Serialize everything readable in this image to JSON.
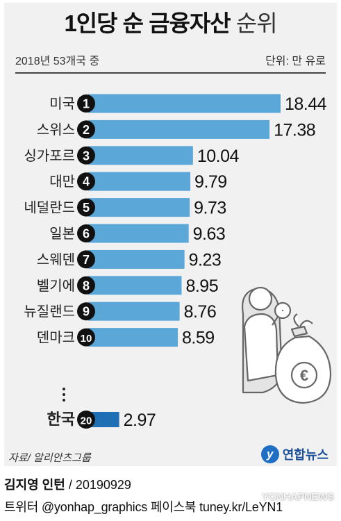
{
  "title_bold": "1인당 순 금융자산",
  "title_light": "순위",
  "subtitle": "2018년 53개국 중",
  "unit": "단위: 만 유로",
  "chart_data": {
    "type": "bar",
    "orientation": "horizontal",
    "title": "1인당 순 금융자산 순위",
    "unit": "만 유로",
    "categories": [
      "미국",
      "스위스",
      "싱가포르",
      "대만",
      "네덜란드",
      "일본",
      "스웨덴",
      "벨기에",
      "뉴질랜드",
      "덴마크",
      "한국"
    ],
    "ranks": [
      "1",
      "2",
      "3",
      "4",
      "5",
      "6",
      "7",
      "8",
      "9",
      "10",
      "20"
    ],
    "values": [
      18.44,
      17.38,
      10.04,
      9.79,
      9.73,
      9.63,
      9.23,
      8.95,
      8.76,
      8.59,
      2.97
    ],
    "value_labels": [
      "18.44",
      "17.38",
      "10.04",
      "9.79",
      "9.73",
      "9.63",
      "9.23",
      "8.95",
      "8.76",
      "8.59",
      "2.97"
    ],
    "highlight": "한국",
    "colors": {
      "bar": "#5aa7d8",
      "highlight_bar": "#1e6fb3",
      "rank_circle": "#111111",
      "panel": "#f1f1f1"
    },
    "xlim": [
      0,
      18.44
    ],
    "grid": false,
    "legend": "none"
  },
  "source": "자료/ 알리안츠그룹",
  "logo": {
    "mark": "y",
    "text": "연합뉴스"
  },
  "credit_name": "김지영 인턴",
  "credit_date": " / 20190929",
  "credit_social": "트위터 @yonhap_graphics  페이스북 tuney.kr/LeYN1",
  "watermark": "YONHAPNEWS",
  "illustration": "person-with-magnifier-and-euro-money-bag"
}
